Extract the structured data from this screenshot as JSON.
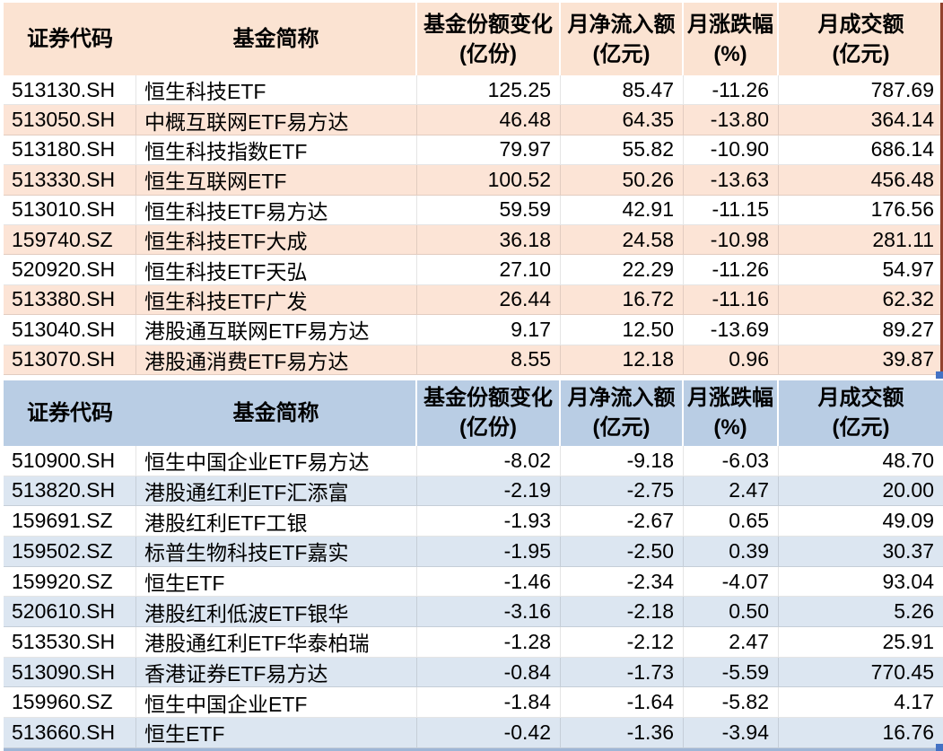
{
  "columns": [
    {
      "label": "证券代码",
      "unit": ""
    },
    {
      "label": "基金简称",
      "unit": ""
    },
    {
      "label": "基金份额变化",
      "unit": "(亿份)"
    },
    {
      "label": "月净流入额",
      "unit": "(亿元)"
    },
    {
      "label": "月涨跌幅",
      "unit": "(%)"
    },
    {
      "label": "月成交额",
      "unit": "(亿元)"
    }
  ],
  "inflow_table": {
    "rows": [
      [
        "513130.SH",
        "恒生科技ETF",
        "125.25",
        "85.47",
        "-11.26",
        "787.69"
      ],
      [
        "513050.SH",
        "中概互联网ETF易方达",
        "46.48",
        "64.35",
        "-13.80",
        "364.14"
      ],
      [
        "513180.SH",
        "恒生科技指数ETF",
        "79.97",
        "55.82",
        "-10.90",
        "686.14"
      ],
      [
        "513330.SH",
        "恒生互联网ETF",
        "100.52",
        "50.26",
        "-13.63",
        "456.48"
      ],
      [
        "513010.SH",
        "恒生科技ETF易方达",
        "59.59",
        "42.91",
        "-11.15",
        "176.56"
      ],
      [
        "159740.SZ",
        "恒生科技ETF大成",
        "36.18",
        "24.58",
        "-10.98",
        "281.11"
      ],
      [
        "520920.SH",
        "恒生科技ETF天弘",
        "27.10",
        "22.29",
        "-11.26",
        "54.97"
      ],
      [
        "513380.SH",
        "恒生科技ETF广发",
        "26.44",
        "16.72",
        "-11.16",
        "62.32"
      ],
      [
        "513040.SH",
        "港股通互联网ETF易方达",
        "9.17",
        "12.50",
        "-13.69",
        "89.27"
      ],
      [
        "513070.SH",
        "港股通消费ETF易方达",
        "8.55",
        "12.18",
        "0.96",
        "39.87"
      ]
    ]
  },
  "outflow_table": {
    "rows": [
      [
        "510900.SH",
        "恒生中国企业ETF易方达",
        "-8.02",
        "-9.18",
        "-6.03",
        "48.70"
      ],
      [
        "513820.SH",
        "港股通红利ETF汇添富",
        "-2.19",
        "-2.75",
        "2.47",
        "20.00"
      ],
      [
        "159691.SZ",
        "港股红利ETF工银",
        "-1.93",
        "-2.67",
        "0.65",
        "49.09"
      ],
      [
        "159502.SZ",
        "标普生物科技ETF嘉实",
        "-1.95",
        "-2.50",
        "0.39",
        "30.37"
      ],
      [
        "159920.SZ",
        "恒生ETF",
        "-1.46",
        "-2.34",
        "-4.07",
        "93.04"
      ],
      [
        "520610.SH",
        "港股红利低波ETF银华",
        "-3.16",
        "-2.18",
        "0.50",
        "5.26"
      ],
      [
        "513530.SH",
        "港股通红利ETF华泰柏瑞",
        "-1.28",
        "-2.12",
        "2.47",
        "25.91"
      ],
      [
        "513090.SH",
        "香港证券ETF易方达",
        "-0.84",
        "-1.73",
        "-5.59",
        "770.45"
      ],
      [
        "159960.SZ",
        "恒生中国企业ETF",
        "-1.84",
        "-1.64",
        "-5.82",
        "4.17"
      ],
      [
        "513660.SH",
        "恒生ETF",
        "-0.42",
        "-1.36",
        "-3.94",
        "16.76"
      ]
    ]
  },
  "colors": {
    "peach_header": "#FBE3D2",
    "peach_row": "#FCE4D6",
    "blue_header": "#B9CDE4",
    "blue_row": "#DCE6F1",
    "grid_line": "rgba(0,0,0,0.10)",
    "sel_red": "#93422E",
    "sel_blue": "#9EB6D6",
    "handle_blue": "#4472C4",
    "text": "#000000"
  }
}
